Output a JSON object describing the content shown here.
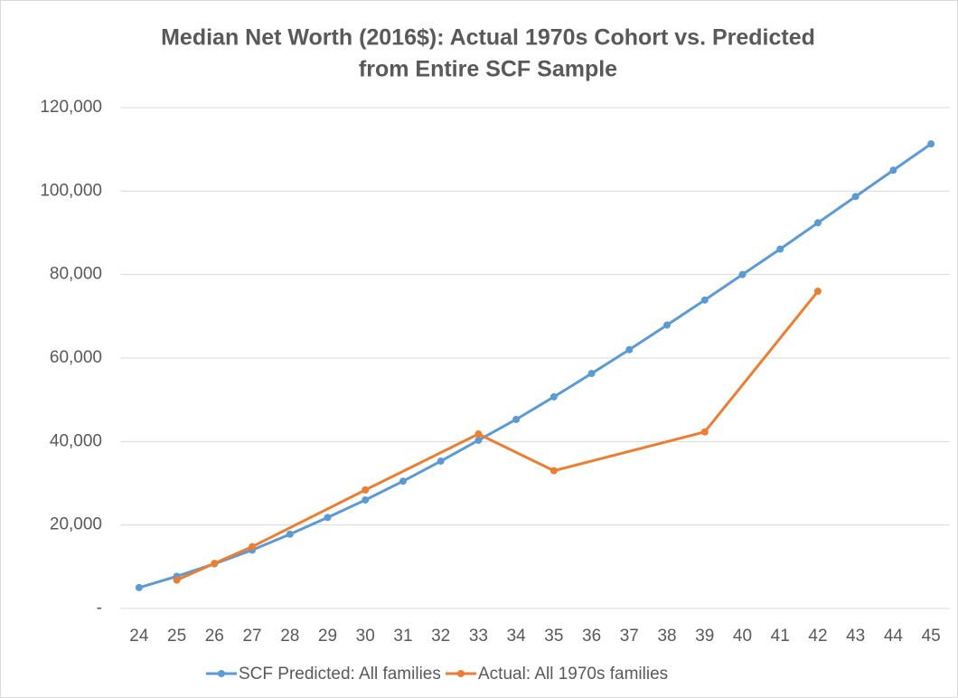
{
  "chart_data": {
    "type": "line",
    "title": [
      "Median Net Worth (2016$): Actual 1970s Cohort vs. Predicted",
      "from Entire SCF Sample"
    ],
    "series": [
      {
        "name": "SCF Predicted: All families",
        "color": "#5b9bd5",
        "x": [
          24,
          25,
          26,
          27,
          28,
          29,
          30,
          31,
          32,
          33,
          34,
          35,
          36,
          37,
          38,
          39,
          40,
          41,
          42,
          43,
          44,
          45
        ],
        "values": [
          5000,
          7700,
          10700,
          14000,
          17800,
          21800,
          26000,
          30500,
          35300,
          40300,
          45300,
          50700,
          56300,
          62000,
          67900,
          73900,
          80000,
          86100,
          92400,
          98700,
          105000,
          111300
        ]
      },
      {
        "name": "Actual: All 1970s families",
        "color": "#ed7d31",
        "x": [
          25,
          26,
          27,
          30,
          33,
          35,
          39,
          42
        ],
        "values": [
          6800,
          10800,
          14800,
          28400,
          41800,
          33000,
          42300,
          76000
        ]
      }
    ],
    "xlim": [
      23.5,
      45.5
    ],
    "xticks": [
      24,
      25,
      26,
      27,
      28,
      29,
      30,
      31,
      32,
      33,
      34,
      35,
      36,
      37,
      38,
      39,
      40,
      41,
      42,
      43,
      44,
      45
    ],
    "ylim": [
      0,
      120000
    ],
    "yticks": [
      {
        "value": 0,
        "label": "-"
      },
      {
        "value": 20000,
        "label": "20,000"
      },
      {
        "value": 40000,
        "label": "40,000"
      },
      {
        "value": 60000,
        "label": "60,000"
      },
      {
        "value": 80000,
        "label": "80,000"
      },
      {
        "value": 100000,
        "label": "100,000"
      },
      {
        "value": 120000,
        "label": "120,000"
      }
    ],
    "grid": true,
    "legend": "bottom"
  }
}
